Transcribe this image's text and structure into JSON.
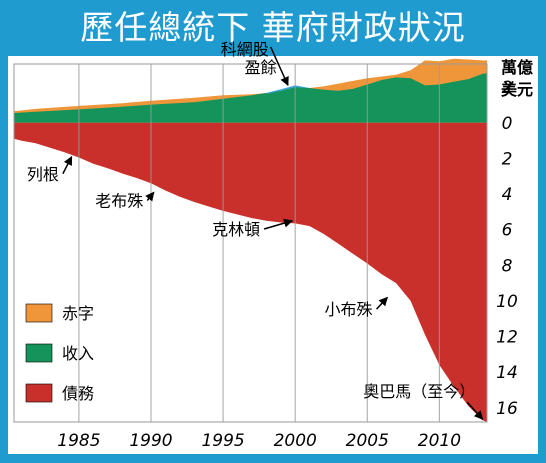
{
  "title": "歷任總統下 華府財政狀況",
  "colors": {
    "frame": "#1f9bd0",
    "deficit": "#f0963a",
    "revenue": "#14935a",
    "debt": "#c9302c",
    "dotcom": "#3aa6dc",
    "grid": "#9a9a9a"
  },
  "chart_data": {
    "type": "area",
    "unit_label": [
      "萬億",
      "美元"
    ],
    "x_ticks": [
      1985,
      1990,
      1995,
      2000,
      2005,
      2010
    ],
    "y_tick_labels": [
      "2",
      "0",
      "2",
      "4",
      "6",
      "8",
      "10",
      "12",
      "14",
      "16"
    ],
    "y_tick_values": [
      2,
      0,
      -2,
      -4,
      -6,
      -8,
      -10,
      -12,
      -14,
      -16
    ],
    "xlim": [
      1980.5,
      2013.3
    ],
    "ylim": [
      -16.8,
      3.3
    ],
    "grid": "vertical",
    "legend_position": "bottom-left",
    "series": [
      {
        "name": "債務",
        "color_key": "debt",
        "x": [
          1980.5,
          1981,
          1982,
          1983,
          1984,
          1985,
          1986,
          1987,
          1988,
          1989,
          1990,
          1991,
          1992,
          1993,
          1994,
          1995,
          1996,
          1997,
          1998,
          1999,
          2000,
          2001,
          2002,
          2003,
          2004,
          2005,
          2006,
          2007,
          2008,
          2009,
          2010,
          2011,
          2012,
          2013,
          2013.3
        ],
        "values": [
          -0.9,
          -1.0,
          -1.15,
          -1.4,
          -1.65,
          -1.95,
          -2.3,
          -2.55,
          -2.85,
          -3.1,
          -3.4,
          -3.8,
          -4.15,
          -4.45,
          -4.7,
          -4.95,
          -5.15,
          -5.35,
          -5.5,
          -5.6,
          -5.65,
          -5.8,
          -6.25,
          -6.8,
          -7.35,
          -7.9,
          -8.5,
          -9.0,
          -10.0,
          -11.9,
          -13.6,
          -14.8,
          -15.9,
          -16.7,
          -16.8
        ]
      },
      {
        "name": "收入",
        "color_key": "revenue",
        "x": [
          1980.5,
          1982,
          1985,
          1988,
          1990,
          1993,
          1995,
          1997,
          1999,
          2000,
          2001,
          2002,
          2003,
          2004,
          2005,
          2006,
          2007,
          2008,
          2009,
          2010,
          2011,
          2012,
          2013,
          2013.3
        ],
        "values": [
          0.55,
          0.62,
          0.75,
          0.9,
          1.02,
          1.15,
          1.35,
          1.55,
          1.8,
          2.02,
          1.95,
          1.85,
          1.8,
          1.9,
          2.15,
          2.4,
          2.55,
          2.5,
          2.1,
          2.15,
          2.3,
          2.45,
          2.75,
          2.78
        ]
      },
      {
        "name": "赤字",
        "color_key": "deficit",
        "x": [
          1980.5,
          1982,
          1985,
          1988,
          1990,
          1993,
          1995,
          1997,
          1999,
          2000,
          2001,
          2002,
          2003,
          2004,
          2005,
          2006,
          2007,
          2008,
          2009,
          2010,
          2011,
          2012,
          2013,
          2013.3
        ],
        "values": [
          0.65,
          0.78,
          0.95,
          1.1,
          1.24,
          1.4,
          1.55,
          1.6,
          1.75,
          2.0,
          1.95,
          2.05,
          2.2,
          2.35,
          2.5,
          2.6,
          2.7,
          2.95,
          3.5,
          3.45,
          3.6,
          3.55,
          3.5,
          3.5
        ]
      }
    ],
    "dotcom_surplus": {
      "x": [
        1998,
        1999,
        2000,
        2001
      ],
      "upper": [
        1.68,
        1.88,
        2.1,
        1.95
      ],
      "lower": [
        1.62,
        1.8,
        2.0,
        1.95
      ]
    },
    "annotations": [
      {
        "text": "科網股",
        "x": 1996.5,
        "y": 3.8,
        "arrow_to": [
          1999.5,
          2.1
        ]
      },
      {
        "text": "盈餘",
        "x": 1997.6,
        "y": 2.8,
        "arrow_to": null
      },
      {
        "text": "列根",
        "x": 1982.5,
        "y": -3.2,
        "arrow_to": [
          1984.5,
          -1.9
        ]
      },
      {
        "text": "老布殊",
        "x": 1987.8,
        "y": -4.7,
        "arrow_to": [
          1990.2,
          -3.9
        ]
      },
      {
        "text": "克林頓",
        "x": 1995.9,
        "y": -6.3,
        "arrow_to": [
          1999.8,
          -5.5
        ]
      },
      {
        "text": "小布殊",
        "x": 2003.7,
        "y": -10.8,
        "arrow_to": [
          2006.4,
          -9.8
        ]
      },
      {
        "text": "奧巴馬（至今）",
        "x": 2008.6,
        "y": -15.4,
        "arrow_to": [
          2013.0,
          -16.65
        ]
      }
    ],
    "legend": [
      {
        "label": "赤字",
        "color_key": "deficit"
      },
      {
        "label": "收入",
        "color_key": "revenue"
      },
      {
        "label": "債務",
        "color_key": "debt"
      }
    ]
  }
}
